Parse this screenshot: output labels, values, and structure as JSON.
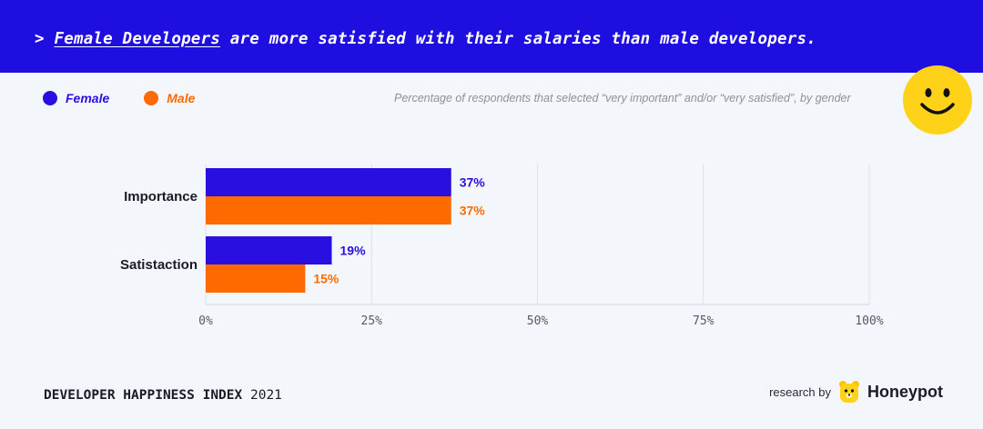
{
  "header": {
    "prefix": ">",
    "highlight": "Female Developers",
    "rest": "are more satisfied with their salaries than male developers."
  },
  "legend": {
    "items": [
      {
        "label": "Female",
        "color": "#2a10e0"
      },
      {
        "label": "Male",
        "color": "#ff6a00"
      }
    ]
  },
  "subtitle": "Percentage of respondents that selected “very important” and/or “very satisfied”, by gender",
  "chart_data": {
    "type": "bar",
    "orientation": "horizontal",
    "categories": [
      "Importance",
      "Satistaction"
    ],
    "series": [
      {
        "name": "Female",
        "values": [
          37,
          19
        ],
        "color": "#2a10e0"
      },
      {
        "name": "Male",
        "values": [
          37,
          15
        ],
        "color": "#ff6a00"
      }
    ],
    "xlim": [
      0,
      100
    ],
    "xticks": [
      0,
      25,
      50,
      75,
      100
    ],
    "xtick_labels": [
      "0%",
      "25%",
      "50%",
      "75%",
      "100%"
    ],
    "value_labels": [
      [
        "37%",
        "19%"
      ],
      [
        "37%",
        "15%"
      ]
    ],
    "grid": true
  },
  "footer": {
    "title_bold": "DEVELOPER HAPPINESS INDEX",
    "year": "2021",
    "research_by": "research by",
    "brand": "Honeypot"
  },
  "icons": {
    "smiley": "smiley-face-icon",
    "brand_logo": "honeypot-bear-icon"
  },
  "colors": {
    "header_bg": "#1f0ee0",
    "smiley": "#ffd21a"
  }
}
